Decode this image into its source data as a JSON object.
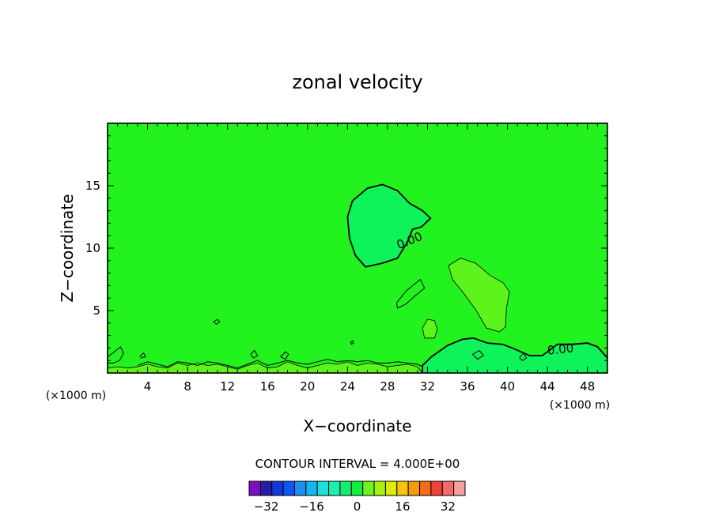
{
  "chart_data": {
    "type": "contour",
    "title": "zonal velocity",
    "xlabel": "X−coordinate",
    "ylabel": "Z−coordinate",
    "x_unit_left": "(×1000 m)",
    "x_unit_right": "(×1000 m)",
    "xlim": [
      0,
      50
    ],
    "ylim": [
      0,
      20
    ],
    "xticks": [
      4,
      8,
      12,
      16,
      20,
      24,
      28,
      32,
      36,
      40,
      44,
      48
    ],
    "xtick_labels": [
      "4",
      "8",
      "12",
      "16",
      "20",
      "24",
      "28",
      "32",
      "36",
      "40",
      "44",
      "48"
    ],
    "yticks": [
      5,
      10,
      15
    ],
    "ytick_labels": [
      "5",
      "10",
      "15"
    ],
    "contour_interval_text": "CONTOUR INTERVAL = 4.000E+00",
    "contour_labels": [
      "0.00",
      "0.00"
    ],
    "colorbar": {
      "colors": [
        "#7b10c0",
        "#2a1aa8",
        "#1438d8",
        "#0c58f0",
        "#1c90f0",
        "#12b8f0",
        "#1ce0e0",
        "#16f0b0",
        "#10f070",
        "#10f040",
        "#6cf41c",
        "#a8f00e",
        "#dcec08",
        "#f4c40a",
        "#f49c0c",
        "#f46c14",
        "#f04438",
        "#f46a6a",
        "#f8a0a0"
      ],
      "tick_values": [
        -32,
        -16,
        0,
        16,
        32
      ],
      "tick_labels": [
        "−32",
        "−16",
        "0",
        "16",
        "32"
      ],
      "range": [
        -38,
        38
      ]
    },
    "background_color": "#22f21e",
    "regions": [
      {
        "level": "negative",
        "color": "#0ef25a",
        "points": [
          [
            24,
            12.5
          ],
          [
            24.5,
            13.8
          ],
          [
            26,
            14.8
          ],
          [
            27.5,
            15.1
          ],
          [
            29,
            14.6
          ],
          [
            30.2,
            13.6
          ],
          [
            31.5,
            13
          ],
          [
            32.3,
            12.4
          ],
          [
            31.4,
            11.7
          ],
          [
            30.5,
            11.5
          ],
          [
            30,
            10.5
          ],
          [
            29,
            9.2
          ],
          [
            27.5,
            8.8
          ],
          [
            25.8,
            8.5
          ],
          [
            24.8,
            9.4
          ],
          [
            24.2,
            10.8
          ]
        ]
      },
      {
        "level": "positive",
        "color": "#5df41c",
        "points": [
          [
            34.1,
            8.6
          ],
          [
            35.3,
            9.2
          ],
          [
            36.8,
            8.8
          ],
          [
            38.3,
            7.8
          ],
          [
            39.6,
            7.2
          ],
          [
            40.2,
            6.5
          ],
          [
            39.9,
            5.2
          ],
          [
            39.8,
            3.7
          ],
          [
            39.2,
            3.3
          ],
          [
            37.9,
            3.6
          ],
          [
            36.8,
            5.1
          ],
          [
            35.6,
            6.4
          ],
          [
            34.5,
            7.5
          ]
        ]
      },
      {
        "level": "positive",
        "color": "#5df41c",
        "points": [
          [
            31.5,
            3.6
          ],
          [
            32,
            4.3
          ],
          [
            32.7,
            4.2
          ],
          [
            33,
            3.5
          ],
          [
            32.7,
            2.8
          ],
          [
            31.7,
            2.8
          ]
        ]
      },
      {
        "level": "negative",
        "color": "#0ef25a",
        "points": [
          [
            31.5,
            0
          ],
          [
            31.5,
            0.6
          ],
          [
            32.4,
            1.3
          ],
          [
            34,
            2.2
          ],
          [
            35.5,
            2.7
          ],
          [
            36.6,
            2.8
          ],
          [
            38,
            2.4
          ],
          [
            39.5,
            2.3
          ],
          [
            40.5,
            2.0
          ],
          [
            42.2,
            1.4
          ],
          [
            43.5,
            1.4
          ],
          [
            45,
            2.3
          ],
          [
            46.5,
            2.3
          ],
          [
            48,
            2.4
          ],
          [
            49,
            2.1
          ],
          [
            50,
            1.2
          ],
          [
            50,
            0
          ]
        ]
      },
      {
        "level": "positive",
        "color": "#5df41c",
        "points": [
          [
            0,
            0
          ],
          [
            0,
            0.4
          ],
          [
            1,
            0.5
          ],
          [
            2,
            0.4
          ],
          [
            3,
            0.5
          ],
          [
            4,
            0.7
          ],
          [
            5,
            0.5
          ],
          [
            6,
            0.4
          ],
          [
            7,
            0.8
          ],
          [
            8,
            0.6
          ],
          [
            9,
            0.8
          ],
          [
            10,
            0.6
          ],
          [
            11,
            0.7
          ],
          [
            12,
            0.5
          ],
          [
            13,
            0.3
          ],
          [
            14,
            0.6
          ],
          [
            15,
            0.8
          ],
          [
            16,
            0.4
          ],
          [
            17,
            0.5
          ],
          [
            18,
            0.9
          ],
          [
            19,
            0.6
          ],
          [
            20,
            0.4
          ],
          [
            21,
            0.6
          ],
          [
            22,
            0.8
          ],
          [
            23,
            0.7
          ],
          [
            24,
            0.9
          ],
          [
            25,
            0.6
          ],
          [
            26,
            0.8
          ],
          [
            27,
            0.7
          ],
          [
            28,
            0.5
          ],
          [
            29,
            0.6
          ],
          [
            30,
            0.7
          ],
          [
            31,
            0.5
          ],
          [
            31.5,
            0
          ]
        ]
      }
    ],
    "contour_lines": [
      {
        "points": [
          [
            0,
            1.3
          ],
          [
            0.7,
            1.7
          ],
          [
            1.3,
            2.1
          ],
          [
            1.6,
            1.6
          ],
          [
            1.2,
            1.0
          ],
          [
            0.6,
            0.8
          ],
          [
            0,
            0.8
          ]
        ]
      },
      {
        "points": [
          [
            10.6,
            4.1
          ],
          [
            11,
            4.3
          ],
          [
            11.2,
            4.1
          ],
          [
            10.9,
            3.9
          ],
          [
            10.6,
            4.1
          ]
        ]
      },
      {
        "points": [
          [
            24.3,
            2.4
          ],
          [
            24.5,
            2.6
          ],
          [
            24.6,
            2.4
          ],
          [
            24.4,
            2.3
          ],
          [
            24.3,
            2.4
          ]
        ]
      },
      {
        "points": [
          [
            28.9,
            5.6
          ],
          [
            29.9,
            6.6
          ],
          [
            31.3,
            7.5
          ],
          [
            31.7,
            6.8
          ],
          [
            30.8,
            6.2
          ],
          [
            29.8,
            5.5
          ],
          [
            29,
            5.2
          ],
          [
            28.9,
            5.6
          ]
        ]
      },
      {
        "points": [
          [
            3.2,
            1.3
          ],
          [
            3.6,
            1.6
          ],
          [
            3.8,
            1.3
          ],
          [
            3.3,
            1.2
          ]
        ]
      },
      {
        "points": [
          [
            17.3,
            1.3
          ],
          [
            17.8,
            1.7
          ],
          [
            18.1,
            1.5
          ],
          [
            17.8,
            1.1
          ],
          [
            17.3,
            1.3
          ]
        ]
      },
      {
        "points": [
          [
            14.3,
            1.5
          ],
          [
            14.7,
            1.8
          ],
          [
            15.0,
            1.4
          ],
          [
            14.6,
            1.2
          ],
          [
            14.3,
            1.5
          ]
        ]
      },
      {
        "points": [
          [
            36.5,
            1.5
          ],
          [
            37.2,
            1.8
          ],
          [
            37.6,
            1.4
          ],
          [
            37.0,
            1.1
          ],
          [
            36.5,
            1.5
          ]
        ]
      },
      {
        "points": [
          [
            41.2,
            1.2
          ],
          [
            41.6,
            1.6
          ],
          [
            41.9,
            1.2
          ],
          [
            41.5,
            1.0
          ],
          [
            41.2,
            1.2
          ]
        ]
      },
      {
        "points": [
          [
            3,
            0.6
          ],
          [
            4,
            0.9
          ],
          [
            5,
            0.7
          ],
          [
            6,
            0.5
          ],
          [
            7,
            0.9
          ],
          [
            8,
            0.8
          ],
          [
            9,
            0.6
          ],
          [
            10,
            0.9
          ],
          [
            11,
            0.8
          ],
          [
            12,
            0.6
          ],
          [
            13,
            0.4
          ],
          [
            14,
            0.7
          ],
          [
            15,
            1.0
          ],
          [
            16,
            0.6
          ],
          [
            17,
            0.8
          ],
          [
            18,
            1.0
          ],
          [
            19,
            0.8
          ],
          [
            20,
            0.7
          ],
          [
            21,
            0.9
          ],
          [
            22,
            1.1
          ],
          [
            23,
            0.9
          ],
          [
            24,
            1.0
          ],
          [
            25,
            0.9
          ],
          [
            26,
            1.0
          ],
          [
            27,
            0.8
          ],
          [
            28,
            0.8
          ],
          [
            29,
            0.9
          ],
          [
            30,
            0.8
          ],
          [
            31,
            0.7
          ],
          [
            31.5,
            0.5
          ]
        ]
      }
    ],
    "outline_contours": [
      {
        "points": [
          [
            24,
            12.5
          ],
          [
            24.5,
            13.8
          ],
          [
            26,
            14.8
          ],
          [
            27.5,
            15.1
          ],
          [
            29,
            14.6
          ],
          [
            30.2,
            13.6
          ],
          [
            31.5,
            13
          ],
          [
            32.3,
            12.4
          ],
          [
            31.4,
            11.7
          ],
          [
            30.5,
            11.5
          ],
          [
            30,
            10.5
          ],
          [
            29,
            9.2
          ],
          [
            27.5,
            8.8
          ],
          [
            25.8,
            8.5
          ],
          [
            24.8,
            9.4
          ],
          [
            24.2,
            10.8
          ],
          [
            24,
            12.5
          ]
        ]
      },
      {
        "points": [
          [
            31.5,
            0
          ],
          [
            31.5,
            0.6
          ],
          [
            32.4,
            1.3
          ],
          [
            34,
            2.2
          ],
          [
            35.5,
            2.7
          ],
          [
            36.6,
            2.8
          ],
          [
            38,
            2.4
          ],
          [
            39.5,
            2.3
          ],
          [
            40.5,
            2.0
          ],
          [
            42.2,
            1.4
          ],
          [
            43.5,
            1.4
          ],
          [
            45,
            2.3
          ],
          [
            46.5,
            2.3
          ],
          [
            48,
            2.4
          ],
          [
            49,
            2.1
          ],
          [
            50,
            1.2
          ]
        ]
      }
    ]
  }
}
